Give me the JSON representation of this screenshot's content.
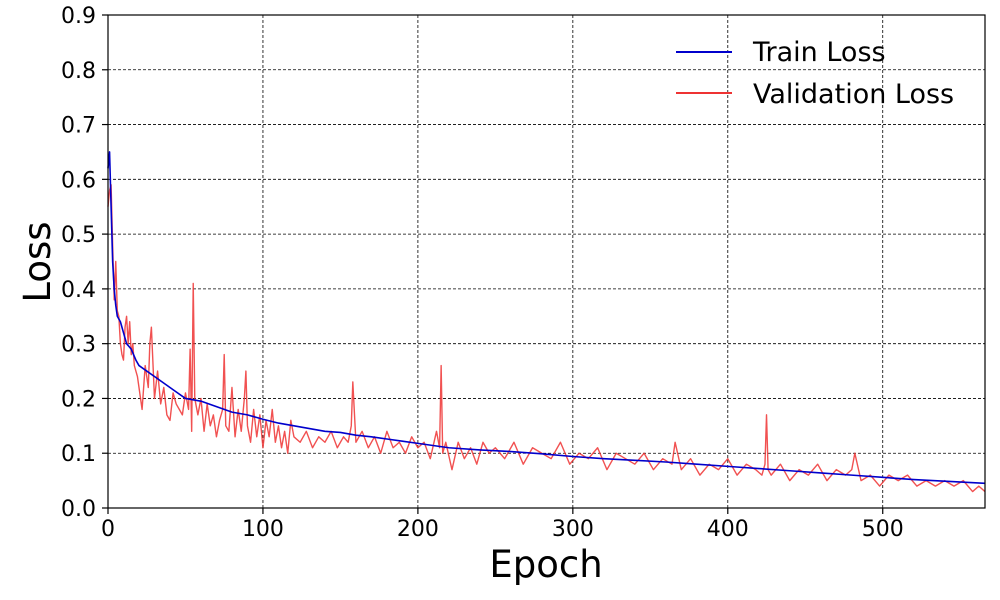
{
  "chart_data": {
    "type": "line",
    "xlabel": "Epoch",
    "ylabel": "Loss",
    "xlim": [
      0,
      566
    ],
    "ylim": [
      0.0,
      0.9
    ],
    "xticks": [
      "0",
      "100",
      "200",
      "300",
      "400",
      "500"
    ],
    "xtick_values": [
      0,
      100,
      200,
      300,
      400,
      500
    ],
    "yticks": [
      "0.0",
      "0.1",
      "0.2",
      "0.3",
      "0.4",
      "0.5",
      "0.6",
      "0.7",
      "0.8",
      "0.9"
    ],
    "ytick_values": [
      0.0,
      0.1,
      0.2,
      0.3,
      0.4,
      0.5,
      0.6,
      0.7,
      0.8,
      0.9
    ],
    "grid": true,
    "legend_position": "top-right",
    "series": [
      {
        "name": "Train Loss",
        "color": "#0000cc",
        "x": [
          0,
          1,
          2,
          3,
          4,
          5,
          6,
          8,
          10,
          12,
          15,
          18,
          20,
          25,
          30,
          35,
          40,
          45,
          50,
          60,
          70,
          80,
          90,
          100,
          110,
          120,
          130,
          140,
          150,
          160,
          170,
          180,
          190,
          200,
          220,
          240,
          260,
          280,
          300,
          320,
          340,
          360,
          380,
          400,
          420,
          440,
          460,
          480,
          500,
          520,
          540,
          566
        ],
        "y": [
          0.62,
          0.65,
          0.55,
          0.45,
          0.4,
          0.37,
          0.35,
          0.34,
          0.32,
          0.3,
          0.29,
          0.27,
          0.26,
          0.25,
          0.24,
          0.23,
          0.22,
          0.21,
          0.2,
          0.195,
          0.185,
          0.175,
          0.17,
          0.162,
          0.155,
          0.15,
          0.145,
          0.14,
          0.138,
          0.133,
          0.13,
          0.126,
          0.122,
          0.118,
          0.11,
          0.106,
          0.103,
          0.099,
          0.094,
          0.09,
          0.087,
          0.084,
          0.08,
          0.076,
          0.072,
          0.068,
          0.064,
          0.06,
          0.056,
          0.052,
          0.049,
          0.045
        ]
      },
      {
        "name": "Validation Loss",
        "color": "#ee3333",
        "x": [
          0,
          1,
          2,
          3,
          4,
          5,
          6,
          7,
          8,
          9,
          10,
          11,
          12,
          13,
          14,
          15,
          16,
          17,
          18,
          19,
          20,
          22,
          24,
          26,
          27,
          28,
          30,
          32,
          34,
          36,
          38,
          40,
          42,
          44,
          46,
          48,
          50,
          52,
          53,
          54,
          55,
          56,
          58,
          60,
          62,
          64,
          66,
          68,
          70,
          72,
          74,
          75,
          76,
          78,
          80,
          82,
          84,
          86,
          88,
          89,
          90,
          92,
          94,
          96,
          98,
          100,
          102,
          104,
          106,
          108,
          110,
          112,
          114,
          116,
          118,
          120,
          124,
          128,
          132,
          136,
          140,
          144,
          148,
          152,
          155,
          157,
          158,
          160,
          164,
          168,
          172,
          176,
          180,
          184,
          188,
          192,
          196,
          200,
          204,
          208,
          212,
          214,
          215,
          216,
          218,
          222,
          226,
          230,
          234,
          238,
          242,
          246,
          250,
          256,
          262,
          268,
          274,
          280,
          286,
          292,
          298,
          304,
          310,
          316,
          322,
          328,
          334,
          340,
          346,
          352,
          358,
          364,
          366,
          370,
          376,
          382,
          388,
          394,
          400,
          406,
          412,
          418,
          422,
          424,
          425,
          426,
          428,
          434,
          440,
          446,
          452,
          458,
          464,
          470,
          476,
          480,
          482,
          486,
          492,
          498,
          504,
          510,
          516,
          522,
          528,
          534,
          540,
          546,
          552,
          558,
          562,
          566
        ],
        "y": [
          0.55,
          0.58,
          0.59,
          0.48,
          0.38,
          0.45,
          0.36,
          0.35,
          0.3,
          0.28,
          0.27,
          0.33,
          0.35,
          0.3,
          0.34,
          0.28,
          0.3,
          0.26,
          0.25,
          0.24,
          0.22,
          0.18,
          0.26,
          0.22,
          0.3,
          0.33,
          0.2,
          0.25,
          0.19,
          0.22,
          0.17,
          0.16,
          0.21,
          0.19,
          0.18,
          0.17,
          0.21,
          0.18,
          0.29,
          0.14,
          0.41,
          0.2,
          0.17,
          0.2,
          0.14,
          0.19,
          0.15,
          0.17,
          0.13,
          0.16,
          0.18,
          0.28,
          0.15,
          0.14,
          0.22,
          0.13,
          0.18,
          0.14,
          0.2,
          0.25,
          0.15,
          0.12,
          0.18,
          0.13,
          0.17,
          0.11,
          0.16,
          0.13,
          0.18,
          0.12,
          0.15,
          0.11,
          0.14,
          0.1,
          0.16,
          0.13,
          0.12,
          0.14,
          0.11,
          0.13,
          0.12,
          0.14,
          0.11,
          0.13,
          0.12,
          0.15,
          0.23,
          0.12,
          0.14,
          0.11,
          0.13,
          0.1,
          0.14,
          0.11,
          0.12,
          0.1,
          0.13,
          0.11,
          0.12,
          0.09,
          0.14,
          0.11,
          0.26,
          0.1,
          0.12,
          0.07,
          0.12,
          0.09,
          0.11,
          0.08,
          0.12,
          0.1,
          0.11,
          0.09,
          0.12,
          0.08,
          0.11,
          0.1,
          0.09,
          0.12,
          0.08,
          0.1,
          0.09,
          0.11,
          0.07,
          0.1,
          0.09,
          0.08,
          0.1,
          0.07,
          0.09,
          0.08,
          0.12,
          0.07,
          0.09,
          0.06,
          0.08,
          0.07,
          0.09,
          0.06,
          0.08,
          0.07,
          0.06,
          0.08,
          0.17,
          0.07,
          0.06,
          0.08,
          0.05,
          0.07,
          0.06,
          0.08,
          0.05,
          0.07,
          0.06,
          0.07,
          0.1,
          0.05,
          0.06,
          0.04,
          0.06,
          0.05,
          0.06,
          0.04,
          0.05,
          0.04,
          0.05,
          0.04,
          0.05,
          0.03,
          0.04,
          0.03
        ]
      }
    ]
  }
}
